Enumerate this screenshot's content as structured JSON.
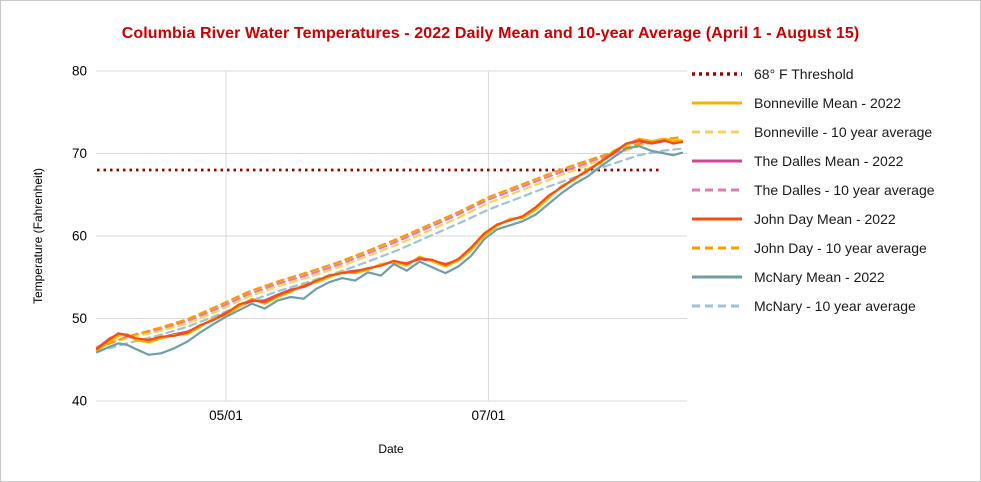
{
  "colors": {
    "title": "#cc0000",
    "grid": "#dadada",
    "axis_text": "#000000",
    "threshold": "#990000",
    "bonneville_mean": "#f5b400",
    "bonneville_avg": "#f8d25c",
    "dalles_mean": "#d5458f",
    "dalles_avg": "#dd7cb3",
    "johnday_mean": "#f94d10",
    "johnday_avg": "#ff9900",
    "mcnary_mean": "#6e9ea8",
    "mcnary_avg": "#9dc3d4"
  },
  "chart_data": {
    "type": "line",
    "title": "Columbia River Water Temperatures - 2022 Daily Mean and 10-year Average (April 1 - August 15)",
    "xlabel": "Date",
    "ylabel": "Temperature (Fahrenheit)",
    "x_unit": "days since April 1",
    "x_range": [
      0,
      136
    ],
    "ylim": [
      40,
      80
    ],
    "y_ticks": [
      40,
      50,
      60,
      70,
      80
    ],
    "x_ticks": [
      {
        "day": 30,
        "label": "05/01"
      },
      {
        "day": 91,
        "label": "07/01"
      }
    ],
    "grid": true,
    "legend_position": "right",
    "threshold": {
      "label": "68° F Threshold",
      "value": 68,
      "color": "#990000",
      "dash": "2.5 4",
      "end_day": 131
    },
    "series": [
      {
        "name": "The Dalles - 10 year average",
        "color": "#dd7cb3",
        "dash": "7 5",
        "width": 2.2,
        "points": [
          [
            0,
            46.5
          ],
          [
            7,
            47.7
          ],
          [
            14,
            48.6
          ],
          [
            21,
            49.7
          ],
          [
            28,
            51.2
          ],
          [
            35,
            52.9
          ],
          [
            42,
            54.2
          ],
          [
            49,
            55.3
          ],
          [
            56,
            56.5
          ],
          [
            63,
            57.9
          ],
          [
            70,
            59.4
          ],
          [
            77,
            61.0
          ],
          [
            84,
            62.6
          ],
          [
            91,
            64.4
          ],
          [
            98,
            65.8
          ],
          [
            105,
            67.2
          ],
          [
            112,
            68.5
          ],
          [
            119,
            69.8
          ],
          [
            126,
            71.0
          ],
          [
            131,
            71.6
          ],
          [
            136,
            71.9
          ]
        ]
      },
      {
        "name": "Bonneville - 10 year average",
        "color": "#f8d25c",
        "dash": "7 5",
        "width": 2.2,
        "points": [
          [
            0,
            46.6
          ],
          [
            7,
            47.6
          ],
          [
            14,
            48.4
          ],
          [
            21,
            49.4
          ],
          [
            28,
            50.9
          ],
          [
            35,
            52.6
          ],
          [
            42,
            53.9
          ],
          [
            49,
            55.0
          ],
          [
            56,
            56.2
          ],
          [
            63,
            57.6
          ],
          [
            70,
            59.0
          ],
          [
            77,
            60.6
          ],
          [
            84,
            62.2
          ],
          [
            91,
            64.0
          ],
          [
            98,
            65.4
          ],
          [
            105,
            66.8
          ],
          [
            112,
            68.2
          ],
          [
            119,
            69.6
          ],
          [
            126,
            70.9
          ],
          [
            131,
            71.5
          ],
          [
            136,
            71.8
          ]
        ]
      },
      {
        "name": "McNary - 10 year average",
        "color": "#9dc3d4",
        "dash": "7 5",
        "width": 2.2,
        "points": [
          [
            0,
            46.0
          ],
          [
            7,
            47.0
          ],
          [
            14,
            47.9
          ],
          [
            21,
            49.0
          ],
          [
            28,
            50.4
          ],
          [
            35,
            52.0
          ],
          [
            42,
            53.3
          ],
          [
            49,
            54.4
          ],
          [
            56,
            55.6
          ],
          [
            63,
            56.9
          ],
          [
            70,
            58.3
          ],
          [
            77,
            59.9
          ],
          [
            84,
            61.5
          ],
          [
            91,
            63.2
          ],
          [
            98,
            64.6
          ],
          [
            105,
            66.0
          ],
          [
            112,
            67.3
          ],
          [
            119,
            68.6
          ],
          [
            126,
            69.8
          ],
          [
            131,
            70.3
          ],
          [
            136,
            70.6
          ]
        ]
      },
      {
        "name": "John Day - 10 year average",
        "color": "#ff9900",
        "dash": "7 5",
        "width": 2.2,
        "points": [
          [
            0,
            46.4
          ],
          [
            7,
            47.8
          ],
          [
            14,
            48.8
          ],
          [
            21,
            49.9
          ],
          [
            28,
            51.5
          ],
          [
            35,
            53.2
          ],
          [
            42,
            54.5
          ],
          [
            49,
            55.6
          ],
          [
            56,
            56.8
          ],
          [
            63,
            58.2
          ],
          [
            70,
            59.7
          ],
          [
            77,
            61.3
          ],
          [
            84,
            62.9
          ],
          [
            91,
            64.7
          ],
          [
            98,
            66.1
          ],
          [
            105,
            67.5
          ],
          [
            112,
            68.8
          ],
          [
            119,
            70.0
          ],
          [
            126,
            71.2
          ],
          [
            131,
            71.7
          ],
          [
            136,
            72.0
          ]
        ]
      },
      {
        "name": "The Dalles Mean - 2022",
        "color": "#d5458f",
        "dash": "",
        "width": 2.2,
        "points": [
          [
            0,
            46.4
          ],
          [
            3,
            47.6
          ],
          [
            5,
            48.1
          ],
          [
            7,
            47.9
          ],
          [
            9,
            47.5
          ],
          [
            12,
            47.2
          ],
          [
            15,
            47.7
          ],
          [
            18,
            48.1
          ],
          [
            21,
            48.4
          ],
          [
            24,
            49.1
          ],
          [
            27,
            49.9
          ],
          [
            30,
            50.7
          ],
          [
            33,
            51.5
          ],
          [
            36,
            52.1
          ],
          [
            39,
            52.2
          ],
          [
            42,
            52.9
          ],
          [
            45,
            53.5
          ],
          [
            48,
            53.8
          ],
          [
            51,
            54.5
          ],
          [
            54,
            55.1
          ],
          [
            57,
            55.6
          ],
          [
            60,
            55.8
          ],
          [
            63,
            56.0
          ],
          [
            66,
            56.5
          ],
          [
            69,
            56.9
          ],
          [
            72,
            56.7
          ],
          [
            75,
            57.2
          ],
          [
            78,
            57.0
          ],
          [
            81,
            56.6
          ],
          [
            84,
            57.1
          ],
          [
            87,
            58.4
          ],
          [
            90,
            60.1
          ],
          [
            93,
            61.3
          ],
          [
            96,
            62.0
          ],
          [
            99,
            62.3
          ],
          [
            102,
            63.4
          ],
          [
            105,
            64.7
          ],
          [
            108,
            66.0
          ],
          [
            111,
            66.9
          ],
          [
            114,
            68.0
          ],
          [
            117,
            68.9
          ],
          [
            120,
            70.0
          ],
          [
            123,
            71.1
          ],
          [
            126,
            71.5
          ],
          [
            129,
            71.2
          ],
          [
            132,
            71.5
          ],
          [
            134,
            71.3
          ],
          [
            136,
            71.4
          ]
        ]
      },
      {
        "name": "Bonneville Mean - 2022",
        "color": "#f5b400",
        "dash": "",
        "width": 2.2,
        "points": [
          [
            0,
            46.1
          ],
          [
            3,
            47.2
          ],
          [
            5,
            47.9
          ],
          [
            7,
            48.1
          ],
          [
            9,
            47.4
          ],
          [
            12,
            47.1
          ],
          [
            15,
            47.6
          ],
          [
            18,
            48.0
          ],
          [
            21,
            48.1
          ],
          [
            24,
            49.0
          ],
          [
            27,
            50.0
          ],
          [
            30,
            50.4
          ],
          [
            33,
            51.4
          ],
          [
            36,
            52.4
          ],
          [
            39,
            51.8
          ],
          [
            42,
            52.6
          ],
          [
            45,
            53.2
          ],
          [
            48,
            54.1
          ],
          [
            51,
            54.4
          ],
          [
            54,
            55.0
          ],
          [
            57,
            55.7
          ],
          [
            60,
            55.5
          ],
          [
            63,
            55.9
          ],
          [
            66,
            56.6
          ],
          [
            69,
            56.8
          ],
          [
            72,
            56.4
          ],
          [
            75,
            57.5
          ],
          [
            78,
            56.9
          ],
          [
            81,
            56.3
          ],
          [
            84,
            57.0
          ],
          [
            87,
            58.3
          ],
          [
            90,
            60.0
          ],
          [
            93,
            61.2
          ],
          [
            96,
            62.1
          ],
          [
            99,
            62.2
          ],
          [
            102,
            63.2
          ],
          [
            105,
            64.6
          ],
          [
            108,
            66.1
          ],
          [
            111,
            66.8
          ],
          [
            114,
            68.1
          ],
          [
            117,
            68.8
          ],
          [
            120,
            70.3
          ],
          [
            123,
            71.0
          ],
          [
            126,
            71.8
          ],
          [
            129,
            71.5
          ],
          [
            132,
            71.8
          ],
          [
            134,
            71.5
          ],
          [
            136,
            71.6
          ]
        ]
      },
      {
        "name": "John Day Mean - 2022",
        "color": "#f94d10",
        "dash": "",
        "width": 2.2,
        "points": [
          [
            0,
            46.3
          ],
          [
            3,
            47.5
          ],
          [
            5,
            48.2
          ],
          [
            7,
            48.0
          ],
          [
            9,
            47.6
          ],
          [
            12,
            47.4
          ],
          [
            15,
            47.8
          ],
          [
            18,
            47.9
          ],
          [
            21,
            48.3
          ],
          [
            24,
            49.2
          ],
          [
            27,
            49.8
          ],
          [
            30,
            50.6
          ],
          [
            33,
            51.7
          ],
          [
            36,
            52.2
          ],
          [
            39,
            52.0
          ],
          [
            42,
            52.8
          ],
          [
            45,
            53.4
          ],
          [
            48,
            53.9
          ],
          [
            51,
            54.6
          ],
          [
            54,
            55.2
          ],
          [
            57,
            55.5
          ],
          [
            60,
            55.7
          ],
          [
            63,
            56.1
          ],
          [
            66,
            56.4
          ],
          [
            69,
            57.0
          ],
          [
            72,
            56.6
          ],
          [
            75,
            57.3
          ],
          [
            78,
            57.1
          ],
          [
            81,
            56.5
          ],
          [
            84,
            57.2
          ],
          [
            87,
            58.6
          ],
          [
            90,
            60.3
          ],
          [
            93,
            61.4
          ],
          [
            96,
            61.9
          ],
          [
            99,
            62.4
          ],
          [
            102,
            63.5
          ],
          [
            105,
            64.9
          ],
          [
            108,
            65.9
          ],
          [
            111,
            67.0
          ],
          [
            114,
            67.9
          ],
          [
            117,
            69.0
          ],
          [
            120,
            70.1
          ],
          [
            123,
            71.2
          ],
          [
            126,
            71.6
          ],
          [
            129,
            71.3
          ],
          [
            132,
            71.6
          ],
          [
            134,
            71.2
          ],
          [
            136,
            71.4
          ]
        ]
      },
      {
        "name": "McNary Mean - 2022",
        "color": "#6e9ea8",
        "dash": "",
        "width": 2.2,
        "points": [
          [
            0,
            45.9
          ],
          [
            3,
            46.6
          ],
          [
            5,
            47.0
          ],
          [
            7,
            46.8
          ],
          [
            9,
            46.3
          ],
          [
            12,
            45.6
          ],
          [
            15,
            45.8
          ],
          [
            18,
            46.4
          ],
          [
            21,
            47.2
          ],
          [
            24,
            48.3
          ],
          [
            27,
            49.3
          ],
          [
            30,
            50.2
          ],
          [
            33,
            51.0
          ],
          [
            36,
            51.8
          ],
          [
            39,
            51.2
          ],
          [
            42,
            52.2
          ],
          [
            45,
            52.6
          ],
          [
            48,
            52.4
          ],
          [
            51,
            53.6
          ],
          [
            54,
            54.4
          ],
          [
            57,
            54.9
          ],
          [
            60,
            54.6
          ],
          [
            63,
            55.6
          ],
          [
            66,
            55.2
          ],
          [
            69,
            56.6
          ],
          [
            72,
            55.8
          ],
          [
            75,
            56.9
          ],
          [
            78,
            56.2
          ],
          [
            81,
            55.5
          ],
          [
            84,
            56.3
          ],
          [
            87,
            57.6
          ],
          [
            90,
            59.6
          ],
          [
            93,
            60.8
          ],
          [
            96,
            61.3
          ],
          [
            99,
            61.8
          ],
          [
            102,
            62.6
          ],
          [
            105,
            63.9
          ],
          [
            108,
            65.2
          ],
          [
            111,
            66.3
          ],
          [
            114,
            67.2
          ],
          [
            117,
            68.4
          ],
          [
            120,
            69.5
          ],
          [
            123,
            70.6
          ],
          [
            126,
            70.9
          ],
          [
            129,
            70.3
          ],
          [
            132,
            70.0
          ],
          [
            134,
            69.8
          ],
          [
            136,
            70.1
          ]
        ]
      }
    ]
  },
  "legend": {
    "items": [
      {
        "label": "68° F Threshold",
        "color": "#990000",
        "dash": "3 4",
        "width": 3.5
      },
      {
        "label": "Bonneville Mean - 2022",
        "color": "#f5b400",
        "dash": "",
        "width": 3
      },
      {
        "label": "Bonneville - 10 year average",
        "color": "#f8d25c",
        "dash": "8 5",
        "width": 3
      },
      {
        "label": "The Dalles Mean - 2022",
        "color": "#d5458f",
        "dash": "",
        "width": 3
      },
      {
        "label": "The Dalles - 10 year average",
        "color": "#dd7cb3",
        "dash": "8 5",
        "width": 3
      },
      {
        "label": "John Day Mean - 2022",
        "color": "#f94d10",
        "dash": "",
        "width": 3
      },
      {
        "label": "John Day - 10 year average",
        "color": "#ff9900",
        "dash": "8 5",
        "width": 3
      },
      {
        "label": "McNary Mean - 2022",
        "color": "#6e9ea8",
        "dash": "",
        "width": 3
      },
      {
        "label": "McNary - 10 year average",
        "color": "#9dc3d4",
        "dash": "8 5",
        "width": 3
      }
    ]
  }
}
